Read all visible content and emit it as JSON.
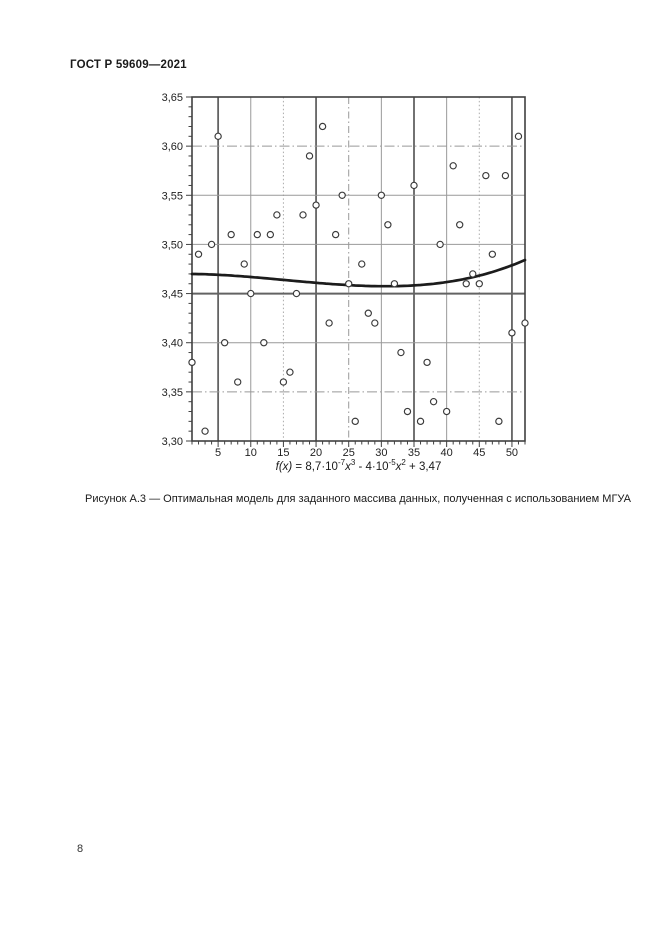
{
  "page": {
    "header": "ГОСТ Р 59609—2021",
    "figure_caption": "Рисунок А.3 — Оптимальная модель для заданного массива данных, полученная с использованием МГУА",
    "page_number": "8"
  },
  "chart_data": {
    "type": "scatter",
    "title": "",
    "xlabel": "",
    "ylabel": "",
    "xlim": [
      1,
      52
    ],
    "ylim": [
      3.3,
      3.65
    ],
    "grid": true,
    "legend": "none",
    "marker": "open-circle",
    "x": [
      1,
      2,
      3,
      4,
      5,
      6,
      7,
      8,
      9,
      10,
      11,
      12,
      13,
      14,
      15,
      16,
      17,
      18,
      19,
      20,
      21,
      22,
      23,
      24,
      25,
      26,
      27,
      28,
      29,
      30,
      31,
      32,
      33,
      34,
      35,
      36,
      37,
      38,
      39,
      40,
      41,
      42,
      43,
      44,
      45,
      46,
      47,
      48,
      49,
      50,
      51,
      52
    ],
    "y": [
      3.38,
      3.49,
      3.31,
      3.5,
      3.61,
      3.4,
      3.51,
      3.36,
      3.48,
      3.45,
      3.51,
      3.4,
      3.51,
      3.53,
      3.36,
      3.37,
      3.45,
      3.53,
      3.59,
      3.54,
      3.62,
      3.42,
      3.51,
      3.55,
      3.46,
      3.32,
      3.48,
      3.43,
      3.42,
      3.55,
      3.52,
      3.46,
      3.39,
      3.33,
      3.56,
      3.32,
      3.38,
      3.34,
      3.5,
      3.33,
      3.58,
      3.52,
      3.46,
      3.47,
      3.46,
      3.57,
      3.49,
      3.32,
      3.57,
      3.41,
      3.61,
      3.42
    ],
    "x_major_ticks": [
      5,
      10,
      15,
      20,
      25,
      30,
      35,
      40,
      45,
      50
    ],
    "x_tick_labels": [
      "5",
      "10",
      "15",
      "20",
      "25",
      "30",
      "35",
      "40",
      "45",
      "50"
    ],
    "x_minor_step": 1,
    "y_major_ticks": [
      3.65,
      3.6,
      3.55,
      3.5,
      3.45,
      3.4,
      3.35,
      3.3
    ],
    "y_tick_labels": [
      "3,65",
      "3,60",
      "3,55",
      "3,50",
      "3,45",
      "3,40",
      "3,35",
      "3,30"
    ],
    "y_minor_step": 0.01,
    "trend_curve": {
      "type": "cubic-polynomial",
      "coefficients": {
        "a3": 8.7e-07,
        "a2": -4e-05,
        "a1": 0,
        "a0": 3.47
      },
      "formula_plain": "f(x) = 8,7·10-7x3 - 4·10-5x2 + 3,47",
      "formula_tokens": [
        {
          "text": "f(x)",
          "style": "italic"
        },
        {
          "text": " = 8,7·10",
          "style": "normal"
        },
        {
          "text": "-7",
          "style": "sup"
        },
        {
          "text": "x",
          "style": "italic"
        },
        {
          "text": "3",
          "style": "sup"
        },
        {
          "text": " - 4·10",
          "style": "normal"
        },
        {
          "text": "-5",
          "style": "sup"
        },
        {
          "text": "x",
          "style": "italic"
        },
        {
          "text": "2",
          "style": "sup"
        },
        {
          "text": " + 3,47",
          "style": "normal"
        }
      ]
    },
    "gridline_styles": {
      "x_emphasized": [
        5,
        20,
        35,
        50
      ],
      "x_dotted": [
        15,
        45
      ],
      "x_dashdot": [
        25
      ],
      "y_emphasized": [
        3.45
      ],
      "y_dashdot": [
        3.6,
        3.35
      ]
    },
    "colors": {
      "grid": "#999999",
      "grid_light": "#ababab",
      "grid_emphasis": "#636363",
      "frame": "#404040",
      "curve": "#1c1c1c",
      "marker_stroke": "#3a3a3a",
      "marker_fill": "#ffffff",
      "text": "#222222"
    }
  }
}
